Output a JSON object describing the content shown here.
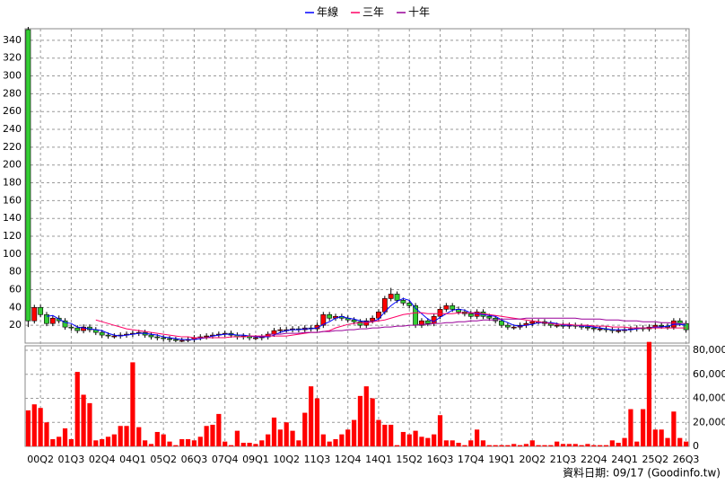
{
  "chart_data": [
    {
      "type": "candlestick",
      "ylim": [
        0,
        353
      ],
      "yticks": [
        20,
        40,
        60,
        80,
        100,
        120,
        140,
        160,
        180,
        200,
        220,
        240,
        260,
        280,
        300,
        320,
        340
      ],
      "grid": true,
      "up_color": "#ff0000",
      "down_color": "#33cc33",
      "open": [
        352,
        25,
        40,
        32,
        22,
        28,
        25,
        18,
        17,
        14,
        18,
        15,
        12,
        9,
        8,
        8,
        9,
        10,
        11,
        12,
        9,
        7,
        6,
        5,
        4,
        3,
        3,
        4,
        6,
        7,
        8,
        9,
        10,
        11,
        9,
        7,
        8,
        6,
        6,
        7,
        10,
        14,
        15,
        15,
        16,
        15,
        17,
        16,
        20,
        32,
        28,
        30,
        28,
        26,
        24,
        20,
        25,
        28,
        35,
        50,
        55,
        48,
        45,
        42,
        20,
        25,
        22,
        30,
        38,
        42,
        38,
        35,
        33,
        30,
        35,
        30,
        28,
        25,
        20,
        18,
        18,
        20,
        22,
        24,
        24,
        22,
        20,
        20,
        19,
        20,
        19,
        18,
        17,
        16,
        16,
        15,
        14,
        14,
        15,
        16,
        17,
        16,
        18,
        20,
        19,
        18,
        25,
        22
      ],
      "high": [
        355,
        43,
        43,
        35,
        31,
        31,
        28,
        21,
        20,
        21,
        21,
        18,
        15,
        12,
        11,
        12,
        13,
        14,
        15,
        15,
        12,
        10,
        9,
        8,
        7,
        6,
        7,
        9,
        10,
        11,
        12,
        13,
        14,
        14,
        12,
        11,
        11,
        9,
        10,
        13,
        17,
        18,
        18,
        19,
        19,
        20,
        20,
        23,
        35,
        35,
        33,
        33,
        31,
        29,
        27,
        28,
        31,
        38,
        53,
        62,
        58,
        51,
        48,
        45,
        28,
        28,
        33,
        41,
        45,
        45,
        41,
        38,
        36,
        38,
        38,
        33,
        31,
        28,
        23,
        21,
        23,
        25,
        27,
        27,
        27,
        25,
        23,
        23,
        23,
        23,
        22,
        21,
        20,
        19,
        19,
        18,
        17,
        18,
        19,
        20,
        20,
        21,
        23,
        23,
        22,
        28,
        28,
        25
      ],
      "low": [
        18,
        22,
        29,
        19,
        19,
        22,
        15,
        14,
        11,
        11,
        12,
        9,
        6,
        5,
        5,
        5,
        6,
        7,
        8,
        6,
        4,
        3,
        2,
        1,
        1,
        1,
        1,
        1,
        3,
        4,
        5,
        6,
        7,
        6,
        4,
        4,
        3,
        3,
        3,
        4,
        7,
        11,
        12,
        12,
        12,
        12,
        13,
        13,
        17,
        25,
        25,
        25,
        23,
        21,
        17,
        17,
        22,
        25,
        32,
        47,
        45,
        42,
        39,
        17,
        17,
        19,
        19,
        27,
        35,
        35,
        32,
        30,
        27,
        27,
        27,
        25,
        22,
        17,
        15,
        15,
        15,
        17,
        19,
        21,
        19,
        17,
        17,
        16,
        16,
        16,
        15,
        14,
        13,
        13,
        12,
        11,
        11,
        11,
        12,
        13,
        13,
        13,
        15,
        16,
        15,
        15,
        19,
        12
      ],
      "close": [
        25,
        40,
        32,
        22,
        28,
        25,
        18,
        17,
        14,
        18,
        15,
        12,
        9,
        8,
        8,
        9,
        10,
        11,
        12,
        9,
        7,
        6,
        5,
        4,
        3,
        3,
        4,
        6,
        7,
        8,
        9,
        10,
        11,
        9,
        7,
        8,
        6,
        6,
        7,
        10,
        14,
        15,
        15,
        16,
        15,
        17,
        16,
        20,
        32,
        28,
        30,
        28,
        26,
        24,
        20,
        25,
        28,
        35,
        50,
        55,
        48,
        45,
        42,
        20,
        25,
        22,
        30,
        38,
        42,
        38,
        35,
        33,
        30,
        35,
        30,
        28,
        25,
        20,
        18,
        18,
        20,
        22,
        24,
        24,
        22,
        20,
        20,
        19,
        20,
        19,
        18,
        17,
        16,
        16,
        15,
        14,
        14,
        15,
        16,
        17,
        16,
        18,
        20,
        19,
        18,
        25,
        22,
        15
      ],
      "series": [
        {
          "name": "年線",
          "color": "#0000ff",
          "values": [
            null,
            null,
            null,
            30,
            31,
            27,
            23,
            22,
            18,
            17,
            16,
            15,
            14,
            11,
            9,
            8,
            9,
            10,
            11,
            11,
            10,
            9,
            7,
            6,
            5,
            4,
            4,
            4,
            5,
            6,
            8,
            9,
            10,
            10,
            9,
            9,
            8,
            7,
            7,
            7,
            9,
            12,
            14,
            15,
            15,
            16,
            16,
            17,
            21,
            24,
            28,
            30,
            28,
            27,
            25,
            24,
            24,
            27,
            35,
            42,
            47,
            50,
            48,
            39,
            33,
            27,
            24,
            29,
            33,
            37,
            38,
            37,
            34,
            33,
            32,
            31,
            30,
            26,
            23,
            20,
            19,
            20,
            21,
            23,
            23,
            23,
            22,
            20,
            20,
            20,
            19,
            19,
            18,
            17,
            16,
            15,
            15,
            15,
            15,
            16,
            17,
            17,
            18,
            18,
            19,
            21,
            21,
            20
          ]
        },
        {
          "name": "三年",
          "color": "#ff0066",
          "values": [
            null,
            null,
            null,
            null,
            null,
            null,
            null,
            null,
            null,
            null,
            null,
            26,
            24,
            22,
            20,
            18,
            16,
            15,
            14,
            13,
            12,
            11,
            10,
            9,
            8,
            7,
            7,
            6,
            6,
            6,
            6,
            6,
            6,
            7,
            7,
            7,
            8,
            8,
            8,
            8,
            8,
            8,
            8,
            9,
            10,
            11,
            12,
            12,
            13,
            14,
            17,
            19,
            21,
            22,
            23,
            23,
            24,
            25,
            26,
            28,
            30,
            32,
            33,
            34,
            34,
            33,
            33,
            33,
            33,
            33,
            34,
            34,
            34,
            34,
            33,
            32,
            31,
            30,
            29,
            28,
            27,
            26,
            25,
            24,
            23,
            22,
            21,
            21,
            21,
            20,
            20,
            20,
            19,
            19,
            19,
            18,
            18,
            18,
            17,
            17,
            17,
            17,
            17,
            17,
            17,
            17,
            17,
            17
          ]
        },
        {
          "name": "十年",
          "color": "#990099",
          "values": [
            null,
            null,
            null,
            null,
            null,
            null,
            null,
            null,
            null,
            null,
            null,
            null,
            null,
            null,
            null,
            null,
            null,
            null,
            null,
            null,
            null,
            null,
            null,
            null,
            null,
            null,
            null,
            null,
            null,
            null,
            null,
            null,
            null,
            null,
            null,
            null,
            null,
            null,
            null,
            10,
            10,
            10,
            11,
            11,
            11,
            12,
            12,
            12,
            13,
            13,
            14,
            14,
            15,
            15,
            16,
            16,
            17,
            17,
            18,
            18,
            19,
            19,
            20,
            20,
            21,
            21,
            22,
            22,
            23,
            23,
            24,
            24,
            25,
            25,
            26,
            26,
            26,
            27,
            27,
            27,
            27,
            28,
            28,
            28,
            28,
            28,
            28,
            28,
            28,
            28,
            27,
            27,
            27,
            27,
            26,
            26,
            26,
            25,
            25,
            25,
            24,
            24,
            24,
            23,
            23,
            22,
            22,
            22
          ]
        }
      ]
    },
    {
      "type": "bar",
      "color": "#ff0000",
      "ylim": [
        0,
        87500
      ],
      "yticks": [
        0,
        {
          "value": 20000,
          "label": "20,000"
        },
        {
          "value": 40000,
          "label": "40,000"
        },
        {
          "value": 60000,
          "label": "60,000"
        },
        {
          "value": 80000,
          "label": "80,000"
        }
      ],
      "grid": true,
      "categories": [
        null,
        null,
        "00Q2",
        null,
        null,
        null,
        null,
        "01Q3",
        null,
        null,
        null,
        null,
        "02Q4",
        null,
        null,
        null,
        null,
        "04Q1",
        null,
        null,
        null,
        null,
        "05Q2",
        null,
        null,
        null,
        null,
        "06Q3",
        null,
        null,
        null,
        null,
        "07Q4",
        null,
        null,
        null,
        null,
        "09Q1",
        null,
        null,
        null,
        null,
        "10Q2",
        null,
        null,
        null,
        null,
        "11Q3",
        null,
        null,
        null,
        null,
        "12Q4",
        null,
        null,
        null,
        null,
        "14Q1",
        null,
        null,
        null,
        null,
        "15Q2",
        null,
        null,
        null,
        null,
        "16Q3",
        null,
        null,
        null,
        null,
        "17Q4",
        null,
        null,
        null,
        null,
        "19Q1",
        null,
        null,
        null,
        null,
        "20Q2",
        null,
        null,
        null,
        null,
        "21Q3",
        null,
        null,
        null,
        null,
        "22Q4",
        null,
        null,
        null,
        null,
        "24Q1",
        null,
        null,
        null,
        null,
        "25Q2",
        null,
        null,
        null,
        null,
        "26Q3"
      ],
      "values": [
        30000,
        35000,
        32000,
        20000,
        6000,
        8000,
        15000,
        6000,
        62000,
        43000,
        36000,
        5000,
        6000,
        8000,
        10000,
        17000,
        17000,
        70000,
        16000,
        5000,
        2000,
        12000,
        10000,
        4000,
        1000,
        6000,
        6000,
        5000,
        8000,
        17000,
        18000,
        27000,
        4000,
        1000,
        13000,
        3000,
        3000,
        2000,
        5000,
        10000,
        24000,
        14000,
        20000,
        13000,
        5000,
        28000,
        50000,
        40000,
        10000,
        4000,
        6000,
        10000,
        14000,
        22000,
        42000,
        50000,
        40000,
        22000,
        18000,
        18000,
        1000,
        12000,
        10000,
        13000,
        8000,
        7000,
        10000,
        26000,
        5000,
        5000,
        3000,
        1000,
        5000,
        14000,
        5000,
        1000,
        1000,
        1000,
        1000,
        2000,
        1000,
        2000,
        5000,
        1000,
        1000,
        1000,
        4000,
        2000,
        2000,
        2000,
        1000,
        2000,
        1000,
        1000,
        1000,
        5000,
        3000,
        7000,
        31000,
        4000,
        31000,
        87000,
        14000,
        14000,
        7000,
        29000,
        7000,
        4000
      ]
    }
  ],
  "source": "資料日期: 09/17  (Goodinfo.tw)"
}
